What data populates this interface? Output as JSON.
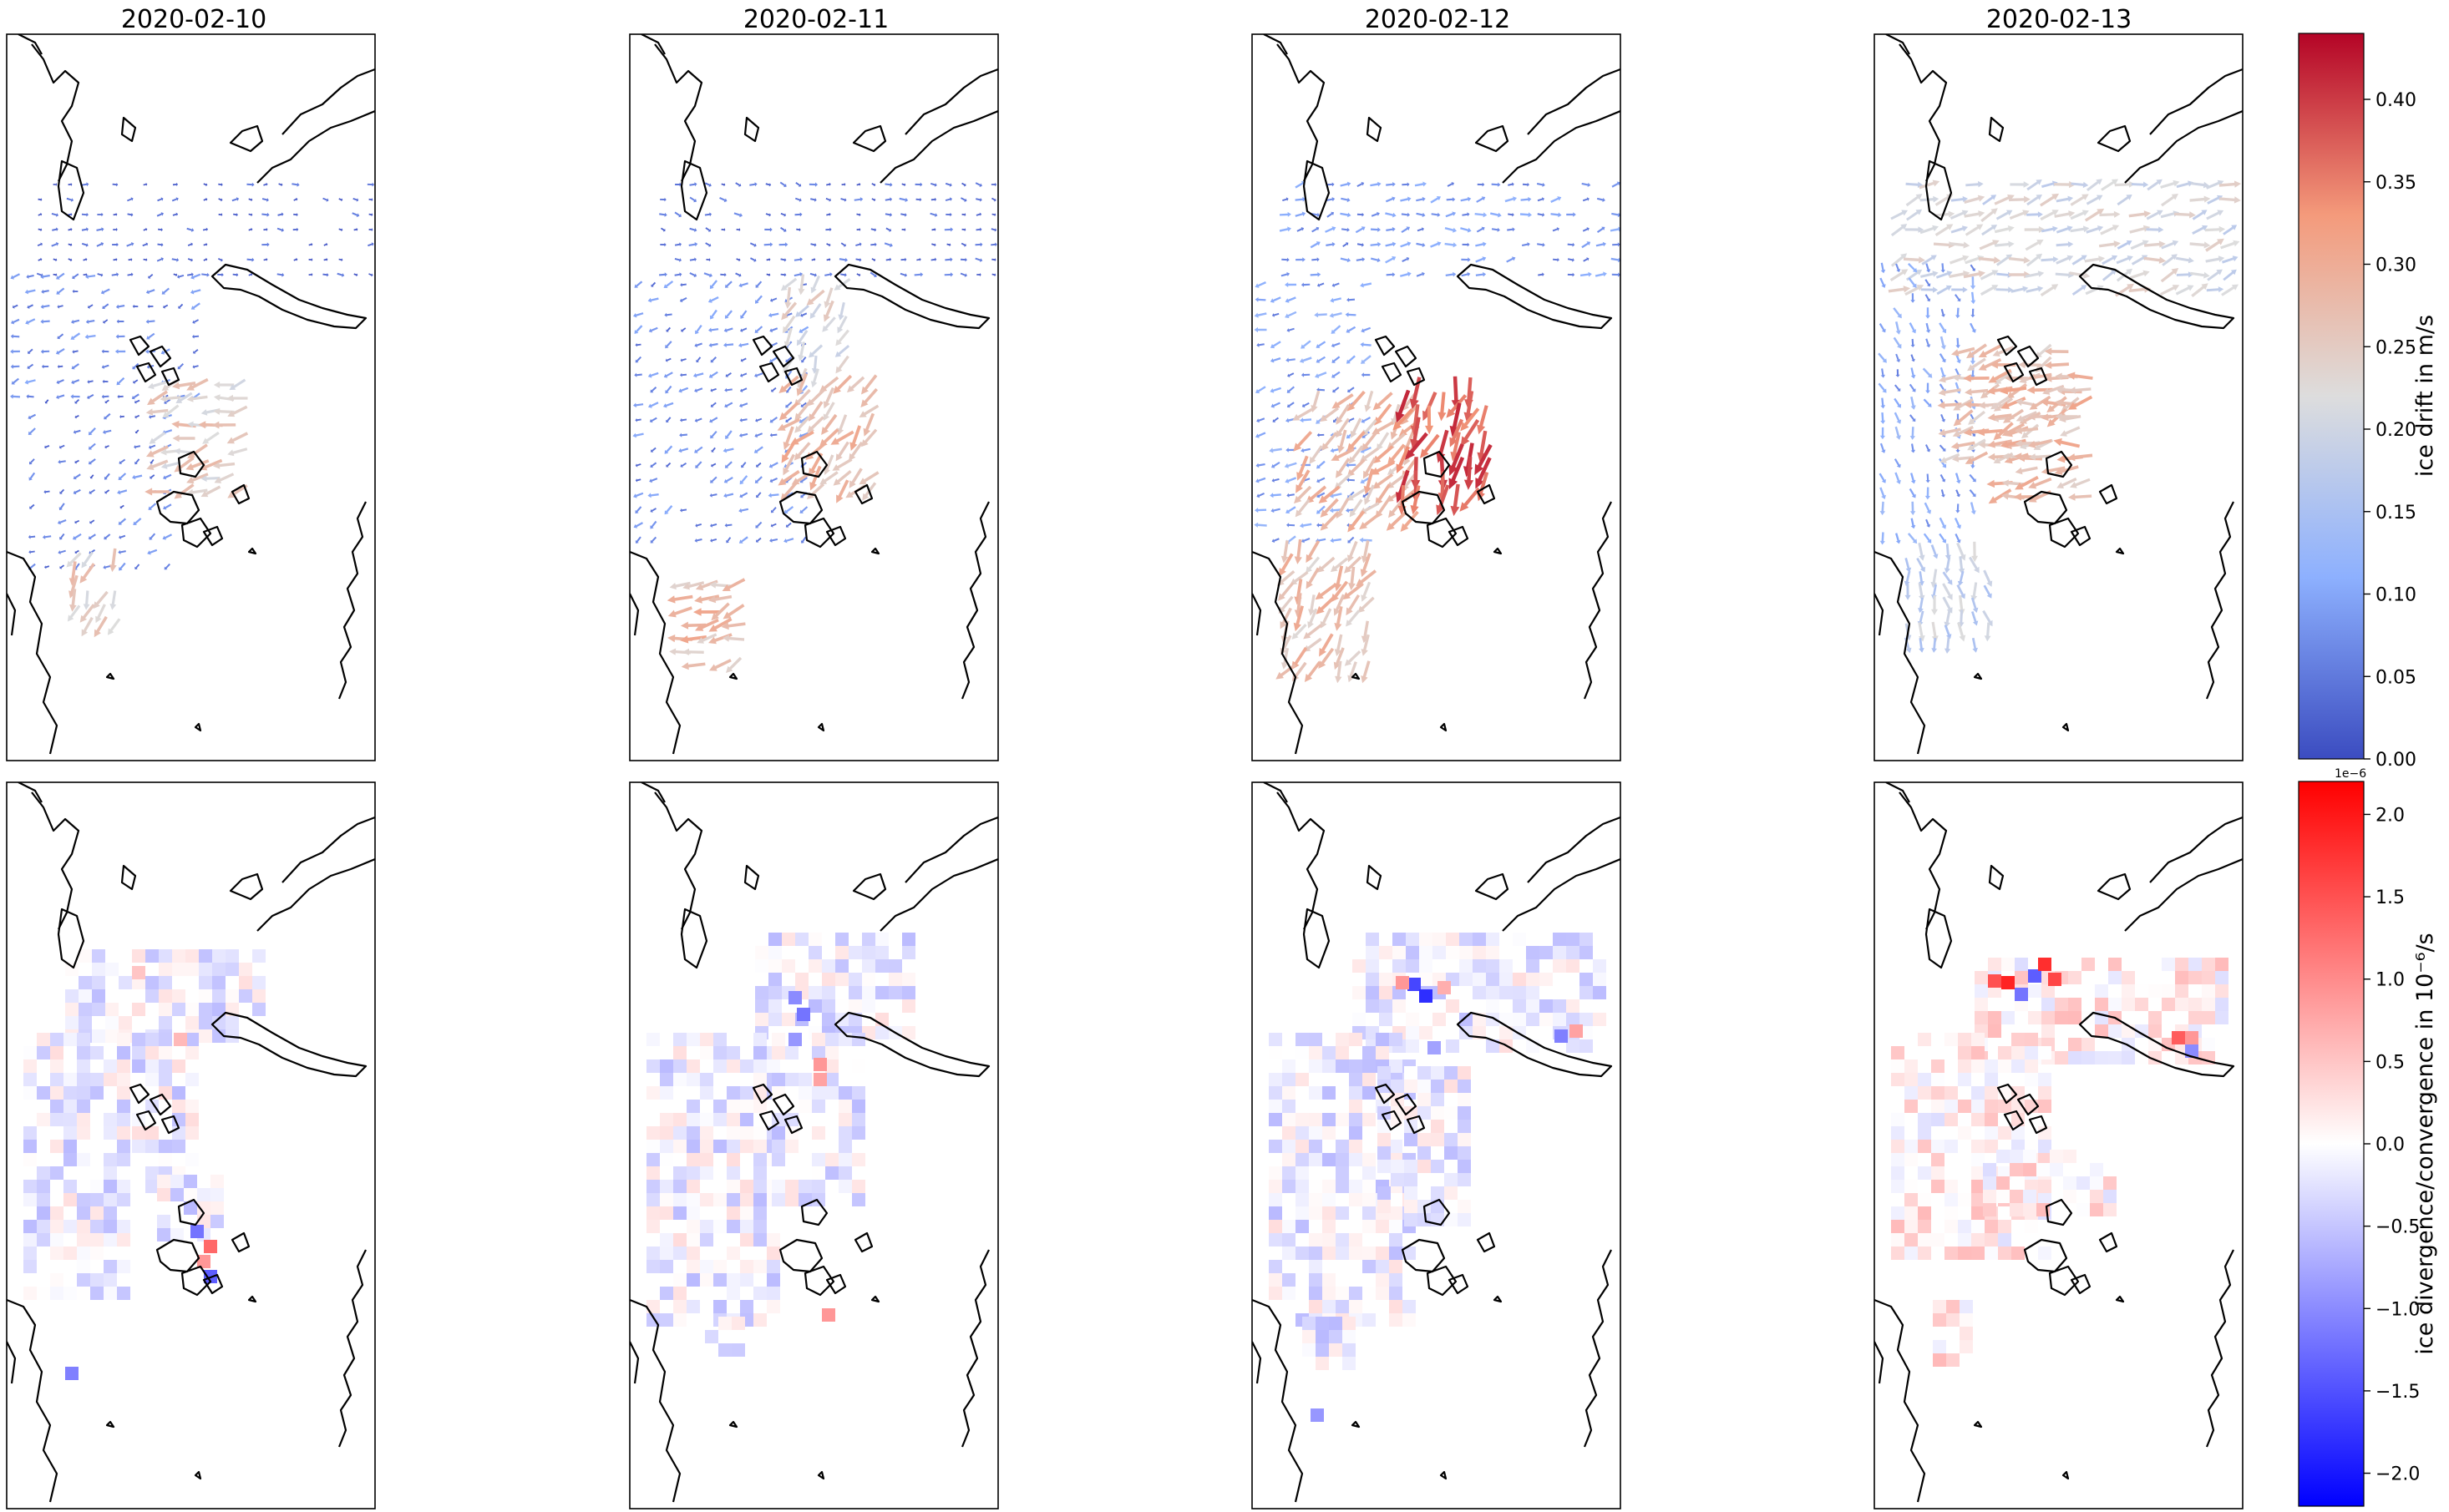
{
  "panels": [
    {
      "title": "2020-02-10"
    },
    {
      "title": "2020-02-11"
    },
    {
      "title": "2020-02-12"
    },
    {
      "title": "2020-02-13"
    }
  ],
  "colorbars": {
    "drift": {
      "label": "ice drift in m/s",
      "ticks": [
        "0.00",
        "0.05",
        "0.10",
        "0.15",
        "0.20",
        "0.25",
        "0.30",
        "0.35",
        "0.40"
      ],
      "tick_values": [
        0.0,
        0.05,
        0.1,
        0.15,
        0.2,
        0.25,
        0.3,
        0.35,
        0.4
      ],
      "range": [
        0.0,
        0.44
      ],
      "colormap": "coolwarm",
      "colors": [
        "#3b4cc0",
        "#dddddd",
        "#b40426"
      ]
    },
    "divergence": {
      "label": "ice divergence/convergence in 10⁻⁶/s",
      "offset_text": "1e−6",
      "ticks": [
        "−2.0",
        "−1.5",
        "−1.0",
        "−0.5",
        "0.0",
        "0.5",
        "1.0",
        "1.5",
        "2.0"
      ],
      "tick_values": [
        -2.0,
        -1.5,
        -1.0,
        -0.5,
        0.0,
        0.5,
        1.0,
        1.5,
        2.0
      ],
      "range": [
        -2.2,
        2.2
      ],
      "colormap": "bwr",
      "colors": [
        "#0000ff",
        "#ffffff",
        "#ff0000"
      ]
    }
  }
}
